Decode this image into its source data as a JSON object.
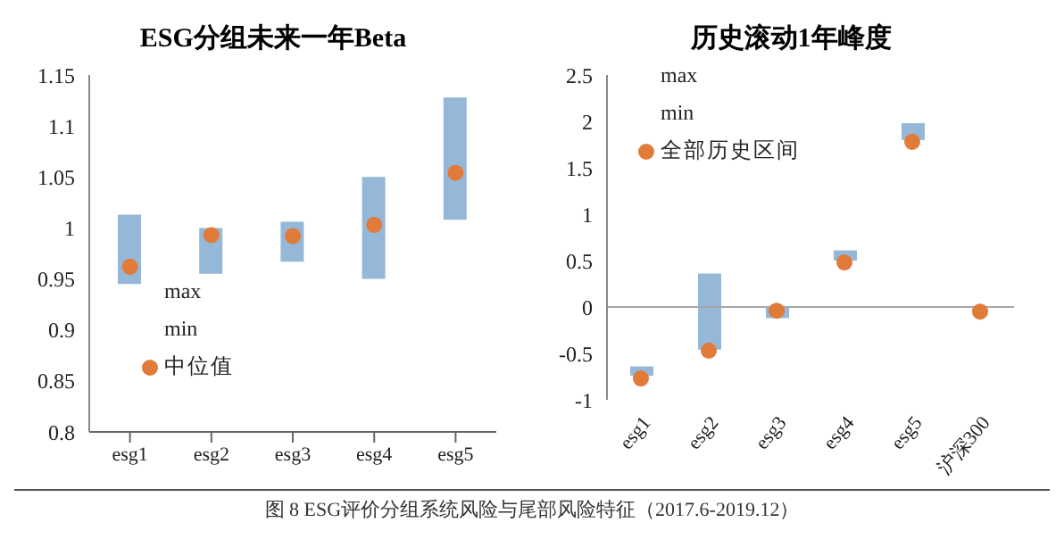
{
  "chart_data": [
    {
      "type": "bar",
      "title": "ESG分组未来一年Beta",
      "categories": [
        "esg1",
        "esg2",
        "esg3",
        "esg4",
        "esg5"
      ],
      "series": [
        {
          "type": "bar",
          "color": "#95b8d8",
          "values": [
            0.068,
            0.045,
            0.039,
            0.1,
            0.12
          ],
          "base": [
            0.945,
            0.955,
            0.967,
            0.95,
            1.008
          ]
        },
        {
          "type": "scatter",
          "name": "中位值",
          "color": "#e07b39",
          "values": [
            0.962,
            0.993,
            0.992,
            1.003,
            1.054
          ],
          "x": [
            "esg1",
            "esg2",
            "esg3",
            "esg4",
            "esg5"
          ]
        }
      ],
      "ylim": [
        0.8,
        1.15
      ],
      "yticks": [
        0.8,
        0.85,
        0.9,
        0.95,
        1,
        1.05,
        1.1,
        1.15
      ],
      "legend": "bottom left",
      "marker": "circle",
      "annotations": [
        "max",
        "min"
      ]
    },
    {
      "type": "bar",
      "title": "历史滚动1年峰度",
      "categories": [
        "esg1",
        "esg2",
        "esg3",
        "esg4",
        "esg5",
        "沪深300"
      ],
      "series": [
        {
          "type": "bar",
          "color": "#95b8d8",
          "values": [
            0.1,
            0.82,
            0.12,
            0.11,
            0.18,
            null
          ],
          "base": [
            -0.74,
            -0.46,
            -0.12,
            0.5,
            1.8,
            null
          ]
        },
        {
          "type": "scatter",
          "name": "全部历史区间",
          "color": "#e07b39",
          "values": [
            -0.77,
            -0.47,
            -0.04,
            0.48,
            1.78,
            -0.05
          ],
          "x": [
            "esg1",
            "esg2",
            "esg3",
            "esg4",
            "esg5",
            "沪深300"
          ]
        }
      ],
      "ylim": [
        -1,
        2.5
      ],
      "yticks": [
        -1,
        -0.5,
        0,
        0.5,
        1,
        1.5,
        2,
        2.5
      ],
      "legend": "top left",
      "marker": "circle",
      "annotations": [
        "max",
        "min"
      ],
      "ref_lines": [
        {
          "axis": "y",
          "value": 0,
          "color": "#a6a6a6"
        }
      ]
    },
    {
      "type": "other",
      "annotations": [
        "图 8 ESG评价分组系统风险与尾部风险特征（2017.6-2019.12）"
      ]
    }
  ]
}
